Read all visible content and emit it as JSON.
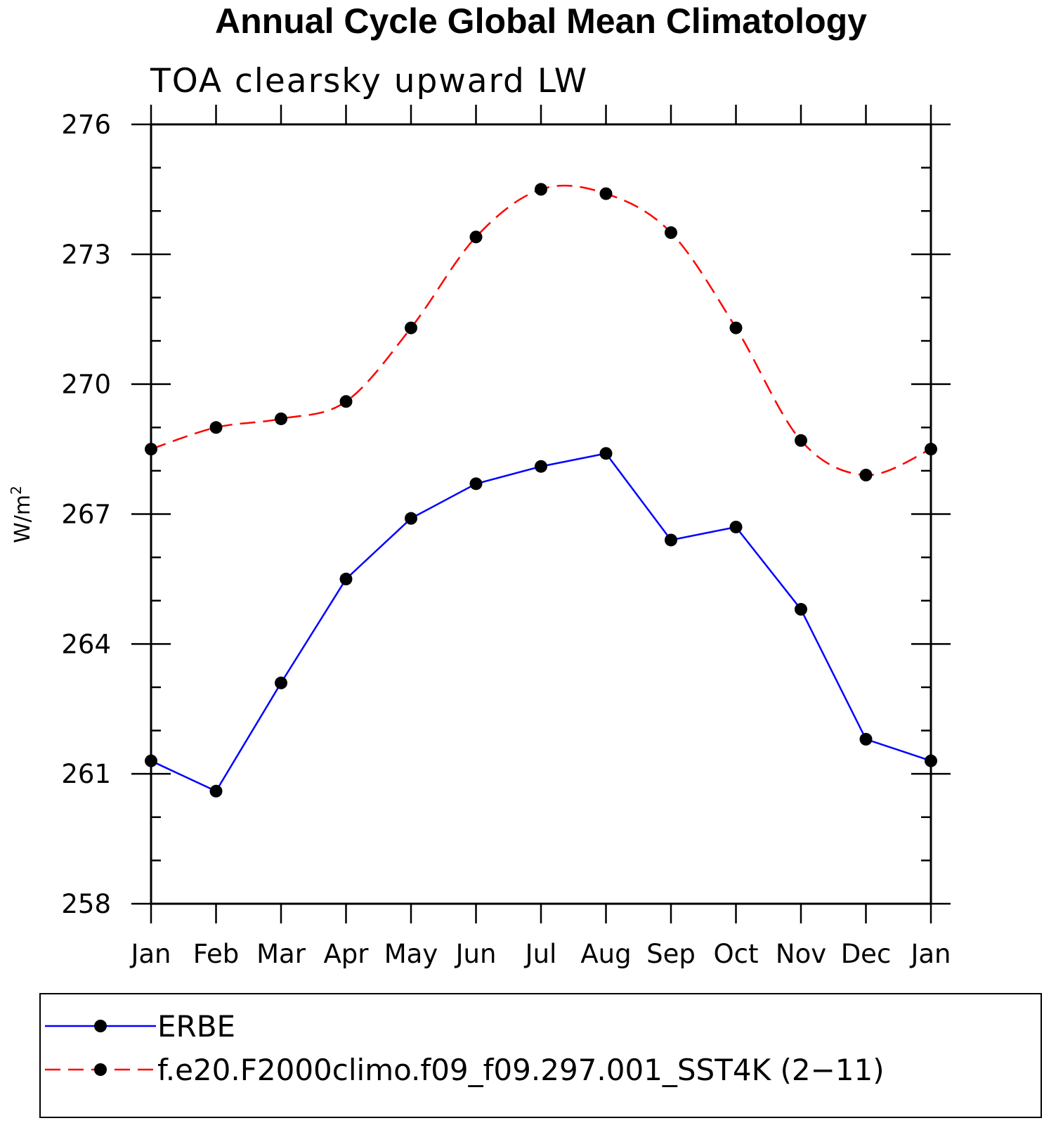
{
  "chart_data": {
    "type": "line",
    "title": "Annual Cycle Global Mean Climatology",
    "subtitle": "TOA clearsky upward LW",
    "ylabel": "W/m",
    "ylabel_sup": "2",
    "xlabel": "",
    "categories": [
      "Jan",
      "Feb",
      "Mar",
      "Apr",
      "May",
      "Jun",
      "Jul",
      "Aug",
      "Sep",
      "Oct",
      "Nov",
      "Dec",
      "Jan"
    ],
    "ylim": [
      258,
      276
    ],
    "yticks": [
      258,
      261,
      264,
      267,
      270,
      273,
      276
    ],
    "grid": false,
    "legend_position": "bottom",
    "series": [
      {
        "name": "ERBE",
        "color": "#0000ff",
        "line_style": "solid",
        "marker": "filled-circle",
        "values": [
          261.3,
          260.6,
          263.1,
          265.5,
          266.9,
          267.7,
          268.1,
          268.4,
          266.4,
          266.7,
          264.8,
          261.8,
          261.3
        ]
      },
      {
        "name": "f.e20.F2000climo.f09_f09.297.001_SST4K (2−11)",
        "color": "#ff0000",
        "line_style": "dashed",
        "marker": "filled-circle",
        "values": [
          268.5,
          269.0,
          269.2,
          269.6,
          271.3,
          273.4,
          274.5,
          274.4,
          273.5,
          271.3,
          268.7,
          267.9,
          268.5
        ]
      }
    ]
  }
}
